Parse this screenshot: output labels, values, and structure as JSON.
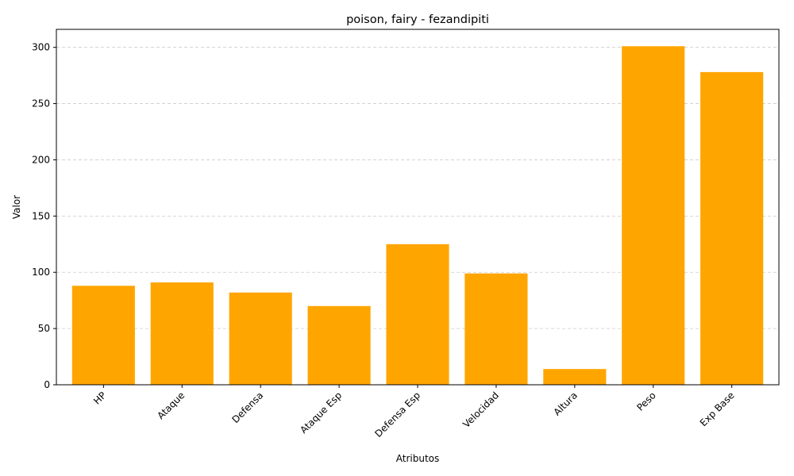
{
  "chart_data": {
    "type": "bar",
    "title": "poison, fairy - fezandipiti",
    "xlabel": "Atributos",
    "ylabel": "Valor",
    "categories": [
      "HP",
      "Ataque",
      "Defensa",
      "Ataque Esp",
      "Defensa Esp",
      "Velocidad",
      "Altura",
      "Peso",
      "Exp Base"
    ],
    "values": [
      88,
      91,
      82,
      70,
      125,
      99,
      14,
      301,
      278
    ],
    "ylim": [
      0,
      316
    ],
    "yticks": [
      0,
      50,
      100,
      150,
      200,
      250,
      300
    ],
    "bar_color": "#ffa500",
    "grid": "horizontal dashed",
    "x_tick_rotation": 45
  }
}
